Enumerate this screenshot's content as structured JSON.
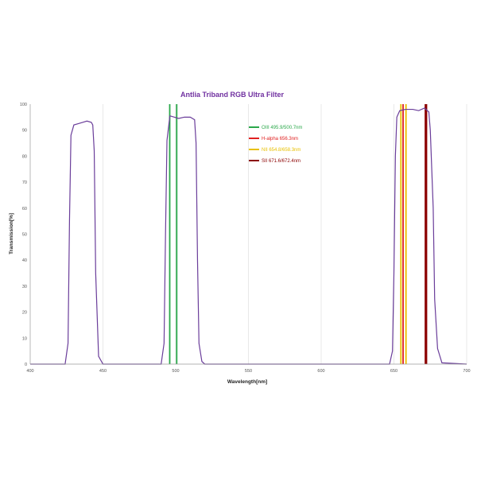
{
  "chart_data": {
    "type": "line",
    "title": "Antlia Triband RGB Ultra Filter",
    "xlabel": "Wavelength[nm]",
    "ylabel": "Transmission[%]",
    "xlim": [
      400,
      700
    ],
    "ylim": [
      0,
      100
    ],
    "x_ticks": [
      400,
      450,
      500,
      550,
      600,
      650,
      700
    ],
    "y_ticks": [
      0,
      10,
      20,
      30,
      40,
      50,
      60,
      70,
      80,
      90,
      100
    ],
    "grid": "vertical",
    "legend_position": "inside-upper-right",
    "curve_color": "#6a3d9a",
    "title_color": "#7030a0",
    "series": [
      {
        "values_x": [
          400,
          424,
          426,
          427,
          428,
          430,
          433,
          436,
          439,
          442,
          443,
          444,
          445,
          447,
          450,
          490,
          492,
          493,
          494,
          496,
          499,
          502,
          506,
          510,
          513,
          514,
          515,
          516,
          518,
          520,
          647,
          649,
          650,
          651,
          652,
          654,
          658,
          663,
          667,
          671,
          674,
          675,
          677,
          678,
          680,
          683,
          700
        ],
        "values_y": [
          0,
          0,
          8,
          55,
          88,
          92,
          92.5,
          93,
          93.5,
          93,
          92,
          82,
          35,
          3,
          0,
          0,
          8,
          50,
          86,
          95.5,
          95,
          94.5,
          95,
          95,
          94,
          85,
          40,
          8,
          1,
          0,
          0,
          5,
          35,
          80,
          95,
          97.5,
          98,
          98,
          97.5,
          98.5,
          97,
          90,
          60,
          25,
          6,
          0.5,
          0
        ]
      }
    ],
    "emission_lines": [
      {
        "label": "OIII 495.9/500.7nm",
        "color": "#2aa84a",
        "wavelengths": [
          495.9,
          500.7
        ]
      },
      {
        "label": "H-alpha 656.3nm",
        "color": "#e02020",
        "wavelengths": [
          656.3
        ]
      },
      {
        "label": "NII 654.8/658.3nm",
        "color": "#e8c000",
        "wavelengths": [
          654.8,
          658.3
        ]
      },
      {
        "label": "SII 671.6/672.4nm",
        "color": "#8b0000",
        "wavelengths": [
          671.6,
          672.4
        ]
      }
    ]
  }
}
